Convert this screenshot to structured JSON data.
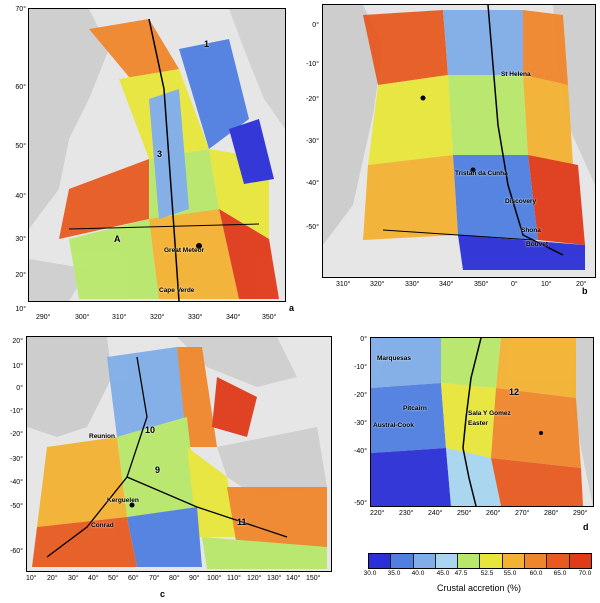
{
  "panels": [
    {
      "letter": "a",
      "x_ticks": [
        "290°",
        "300°",
        "310°",
        "320°",
        "330°",
        "340°",
        "350°"
      ],
      "y_ticks": [
        "70°",
        "60°",
        "50°",
        "40°",
        "30°",
        "20°",
        "10°"
      ],
      "places": [
        "Great Meteor",
        "Cape Verde"
      ],
      "annotations": [
        "A",
        "3",
        "1"
      ]
    },
    {
      "letter": "b",
      "x_ticks": [
        "310°",
        "320°",
        "330°",
        "340°",
        "350°",
        "0°",
        "10°",
        "20°"
      ],
      "y_ticks": [
        "0°",
        "-10°",
        "-20°",
        "-30°",
        "-40°",
        "-50°"
      ],
      "places": [
        "St Helena",
        "Tristan da Cunha",
        "Discovery",
        "Shona",
        "Bouvet"
      ]
    },
    {
      "letter": "c",
      "x_ticks": [
        "10°",
        "20°",
        "30°",
        "40°",
        "50°",
        "60°",
        "70°",
        "80°",
        "90°",
        "100°",
        "110°",
        "120°",
        "130°",
        "140°",
        "150°"
      ],
      "y_ticks": [
        "20°",
        "10°",
        "0°",
        "-10°",
        "-20°",
        "-30°",
        "-40°",
        "-50°",
        "-60°"
      ],
      "places": [
        "Reunion",
        "Kerguelen",
        "Conrad"
      ],
      "annotations": [
        "10",
        "9",
        "11"
      ]
    },
    {
      "letter": "d",
      "x_ticks": [
        "220°",
        "230°",
        "240°",
        "250°",
        "260°",
        "270°",
        "280°",
        "290°"
      ],
      "y_ticks": [
        "0°",
        "-10°",
        "-20°",
        "-30°",
        "-40°",
        "-50°"
      ],
      "places": [
        "Marquesas",
        "Pitcairn",
        "Austral-Cook",
        "Sala Y Gomez",
        "Easter"
      ],
      "annotations": [
        "12"
      ]
    }
  ],
  "colorbar": {
    "title": "Crustal accretion (%)",
    "ticks": [
      "30.0",
      "35.0",
      "40.0",
      "45.0",
      "47.5",
      "52.5",
      "55.0",
      "60.0",
      "65.0",
      "70.0"
    ],
    "colors": [
      "#2b2fd6",
      "#4f7fe0",
      "#7faee8",
      "#a8d6f0",
      "#b7e86a",
      "#e8e63a",
      "#f4b232",
      "#f0862c",
      "#e85a22",
      "#e03a1a"
    ]
  }
}
